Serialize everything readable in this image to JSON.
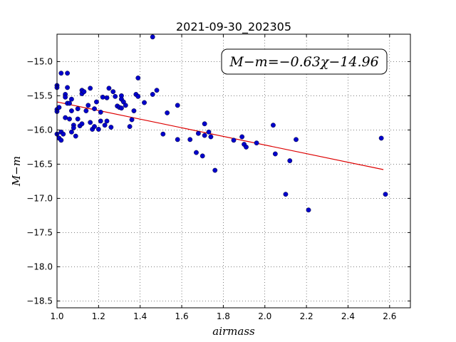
{
  "chart_data": {
    "type": "scatter",
    "title": "2021-09-30_202305",
    "xlabel": "airmass",
    "ylabel": "M−m",
    "xlim": [
      1.0,
      2.7
    ],
    "ylim": [
      -18.6,
      -14.6
    ],
    "y_inverted": true,
    "grid": true,
    "xticks": [
      "1.0",
      "1.2",
      "1.4",
      "1.6",
      "1.8",
      "2.0",
      "2.2",
      "2.4",
      "2.6"
    ],
    "yticks": [
      "−15.0",
      "−15.5",
      "−16.0",
      "−16.5",
      "−17.0",
      "−17.5",
      "−18.0",
      "−18.5"
    ],
    "xtick_values": [
      1.0,
      1.2,
      1.4,
      1.6,
      1.8,
      2.0,
      2.2,
      2.4,
      2.6
    ],
    "ytick_values": [
      -15.0,
      -15.5,
      -16.0,
      -16.5,
      -17.0,
      -17.5,
      -18.0,
      -18.5
    ],
    "annotation": "M−m=−0.63χ−14.96",
    "marker_color": "#0000cc",
    "fit_color": "#dd0000",
    "fit_line": {
      "slope": -0.63,
      "intercept": -14.96,
      "x_start": 1.0,
      "x_end": 2.57
    },
    "series": [
      {
        "points": [
          [
            1.0,
            -15.35
          ],
          [
            1.0,
            -15.38
          ],
          [
            1.0,
            -15.7
          ],
          [
            1.0,
            -15.73
          ],
          [
            1.0,
            -16.06
          ],
          [
            1.01,
            -15.67
          ],
          [
            1.01,
            -16.12
          ],
          [
            1.02,
            -16.15
          ],
          [
            1.02,
            -15.17
          ],
          [
            1.02,
            -16.03
          ],
          [
            1.03,
            -16.06
          ],
          [
            1.04,
            -15.48
          ],
          [
            1.04,
            -15.52
          ],
          [
            1.04,
            -15.82
          ],
          [
            1.05,
            -15.17
          ],
          [
            1.05,
            -15.61
          ],
          [
            1.05,
            -15.38
          ],
          [
            1.06,
            -15.84
          ],
          [
            1.06,
            -15.61
          ],
          [
            1.07,
            -15.55
          ],
          [
            1.07,
            -16.03
          ],
          [
            1.07,
            -15.72
          ],
          [
            1.08,
            -15.93
          ],
          [
            1.08,
            -15.97
          ],
          [
            1.09,
            -16.09
          ],
          [
            1.1,
            -15.69
          ],
          [
            1.1,
            -15.84
          ],
          [
            1.11,
            -15.94
          ],
          [
            1.12,
            -15.47
          ],
          [
            1.12,
            -15.42
          ],
          [
            1.12,
            -15.91
          ],
          [
            1.13,
            -15.44
          ],
          [
            1.14,
            -15.72
          ],
          [
            1.15,
            -15.64
          ],
          [
            1.16,
            -15.39
          ],
          [
            1.16,
            -15.89
          ],
          [
            1.17,
            -15.99
          ],
          [
            1.18,
            -15.95
          ],
          [
            1.18,
            -15.69
          ],
          [
            1.19,
            -15.59
          ],
          [
            1.2,
            -15.99
          ],
          [
            1.21,
            -15.74
          ],
          [
            1.21,
            -15.87
          ],
          [
            1.22,
            -15.52
          ],
          [
            1.23,
            -15.93
          ],
          [
            1.24,
            -15.87
          ],
          [
            1.24,
            -15.53
          ],
          [
            1.25,
            -15.39
          ],
          [
            1.26,
            -15.96
          ],
          [
            1.27,
            -15.44
          ],
          [
            1.28,
            -15.51
          ],
          [
            1.29,
            -15.65
          ],
          [
            1.3,
            -15.67
          ],
          [
            1.31,
            -15.5
          ],
          [
            1.31,
            -15.55
          ],
          [
            1.31,
            -15.68
          ],
          [
            1.32,
            -15.59
          ],
          [
            1.33,
            -15.64
          ],
          [
            1.35,
            -15.95
          ],
          [
            1.36,
            -15.85
          ],
          [
            1.37,
            -15.72
          ],
          [
            1.38,
            -15.48
          ],
          [
            1.39,
            -15.51
          ],
          [
            1.39,
            -15.24
          ],
          [
            1.42,
            -15.6
          ],
          [
            1.46,
            -14.64
          ],
          [
            1.46,
            -15.48
          ],
          [
            1.48,
            -15.42
          ],
          [
            1.51,
            -16.06
          ],
          [
            1.53,
            -15.75
          ],
          [
            1.58,
            -15.64
          ],
          [
            1.58,
            -16.14
          ],
          [
            1.64,
            -16.14
          ],
          [
            1.67,
            -16.33
          ],
          [
            1.68,
            -16.05
          ],
          [
            1.7,
            -16.38
          ],
          [
            1.71,
            -16.08
          ],
          [
            1.71,
            -15.91
          ],
          [
            1.73,
            -16.03
          ],
          [
            1.74,
            -16.1
          ],
          [
            1.76,
            -16.59
          ],
          [
            1.85,
            -16.15
          ],
          [
            1.89,
            -16.1
          ],
          [
            1.9,
            -16.21
          ],
          [
            1.91,
            -16.25
          ],
          [
            1.96,
            -16.19
          ],
          [
            2.04,
            -15.93
          ],
          [
            2.05,
            -16.35
          ],
          [
            2.1,
            -16.94
          ],
          [
            2.12,
            -16.45
          ],
          [
            2.15,
            -16.14
          ],
          [
            2.21,
            -17.17
          ],
          [
            2.56,
            -16.12
          ],
          [
            2.58,
            -16.94
          ]
        ]
      }
    ]
  }
}
